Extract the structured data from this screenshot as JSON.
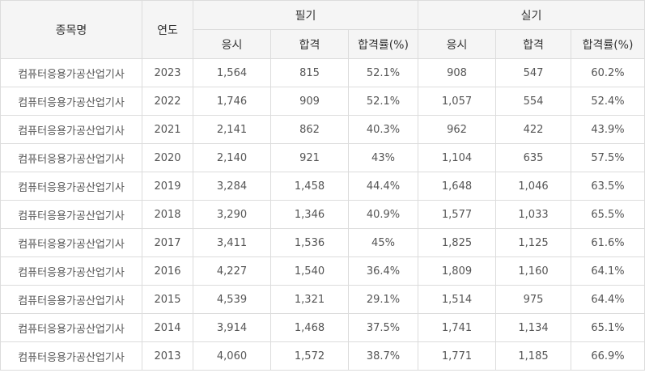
{
  "header": {
    "name": "종목명",
    "year": "연도",
    "written": "필기",
    "practical": "실기",
    "applicants": "응시",
    "passed": "합격",
    "rate": "합격률(%)"
  },
  "rows": [
    {
      "name": "컴퓨터응용가공산업기사",
      "year": "2023",
      "w_app": "1,564",
      "w_pass": "815",
      "w_rate": "52.1%",
      "p_app": "908",
      "p_pass": "547",
      "p_rate": "60.2%"
    },
    {
      "name": "컴퓨터응용가공산업기사",
      "year": "2022",
      "w_app": "1,746",
      "w_pass": "909",
      "w_rate": "52.1%",
      "p_app": "1,057",
      "p_pass": "554",
      "p_rate": "52.4%"
    },
    {
      "name": "컴퓨터응용가공산업기사",
      "year": "2021",
      "w_app": "2,141",
      "w_pass": "862",
      "w_rate": "40.3%",
      "p_app": "962",
      "p_pass": "422",
      "p_rate": "43.9%"
    },
    {
      "name": "컴퓨터응용가공산업기사",
      "year": "2020",
      "w_app": "2,140",
      "w_pass": "921",
      "w_rate": "43%",
      "p_app": "1,104",
      "p_pass": "635",
      "p_rate": "57.5%"
    },
    {
      "name": "컴퓨터응용가공산업기사",
      "year": "2019",
      "w_app": "3,284",
      "w_pass": "1,458",
      "w_rate": "44.4%",
      "p_app": "1,648",
      "p_pass": "1,046",
      "p_rate": "63.5%"
    },
    {
      "name": "컴퓨터응용가공산업기사",
      "year": "2018",
      "w_app": "3,290",
      "w_pass": "1,346",
      "w_rate": "40.9%",
      "p_app": "1,577",
      "p_pass": "1,033",
      "p_rate": "65.5%"
    },
    {
      "name": "컴퓨터응용가공산업기사",
      "year": "2017",
      "w_app": "3,411",
      "w_pass": "1,536",
      "w_rate": "45%",
      "p_app": "1,825",
      "p_pass": "1,125",
      "p_rate": "61.6%"
    },
    {
      "name": "컴퓨터응용가공산업기사",
      "year": "2016",
      "w_app": "4,227",
      "w_pass": "1,540",
      "w_rate": "36.4%",
      "p_app": "1,809",
      "p_pass": "1,160",
      "p_rate": "64.1%"
    },
    {
      "name": "컴퓨터응용가공산업기사",
      "year": "2015",
      "w_app": "4,539",
      "w_pass": "1,321",
      "w_rate": "29.1%",
      "p_app": "1,514",
      "p_pass": "975",
      "p_rate": "64.4%"
    },
    {
      "name": "컴퓨터응용가공산업기사",
      "year": "2014",
      "w_app": "3,914",
      "w_pass": "1,468",
      "w_rate": "37.5%",
      "p_app": "1,741",
      "p_pass": "1,134",
      "p_rate": "65.1%"
    },
    {
      "name": "컴퓨터응용가공산업기사",
      "year": "2013",
      "w_app": "4,060",
      "w_pass": "1,572",
      "w_rate": "38.7%",
      "p_app": "1,771",
      "p_pass": "1,185",
      "p_rate": "66.9%"
    }
  ]
}
